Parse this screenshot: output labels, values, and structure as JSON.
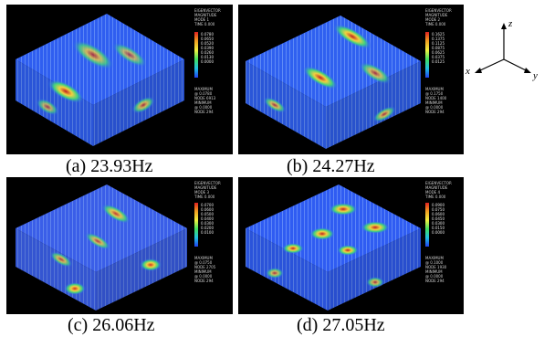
{
  "panels": [
    {
      "caption": "(a) 23.93Hz",
      "legend_top": [
        "EIGENVECTOR",
        "MAGNITUDE",
        "MODE 1",
        "TIME 0.000"
      ],
      "ticks": [
        "0.0780",
        "0.0650",
        "0.0520",
        "0.0390",
        "0.0260",
        "0.0130",
        "0.0000"
      ],
      "legend_bottom": [
        "MAXIMUM",
        "@ 0.0780",
        "NODE 6913",
        "MINIMUM",
        "@ 0.0000",
        "NODE 294"
      ]
    },
    {
      "caption": "(b) 24.27Hz",
      "legend_top": [
        "EIGENVECTOR",
        "MAGNITUDE",
        "MODE 2",
        "TIME 0.000"
      ],
      "ticks": [
        "0.1625",
        "0.1375",
        "0.1125",
        "0.0875",
        "0.0625",
        "0.0375",
        "0.0125"
      ],
      "legend_bottom": [
        "MAXIMUM",
        "@ 0.1750",
        "NODE 1400",
        "MINIMUM",
        "@ 0.0000",
        "NODE 294"
      ]
    },
    {
      "caption": "(c) 26.06Hz",
      "legend_top": [
        "EIGENVECTOR",
        "MAGNITUDE",
        "MODE 3",
        "TIME 0.000"
      ],
      "ticks": [
        "0.0700",
        "0.0600",
        "0.0500",
        "0.0400",
        "0.0300",
        "0.0200",
        "0.0100"
      ],
      "legend_bottom": [
        "MAXIMUM",
        "@ 0.0750",
        "NODE 2705",
        "MINIMUM",
        "@ 0.0000",
        "NODE 294"
      ]
    },
    {
      "caption": "(d) 27.05Hz",
      "legend_top": [
        "EIGENVECTOR",
        "MAGNITUDE",
        "MODE 4",
        "TIME 0.000"
      ],
      "ticks": [
        "0.0900",
        "0.0750",
        "0.0600",
        "0.0450",
        "0.0300",
        "0.0150",
        "0.0000"
      ],
      "legend_bottom": [
        "MAXIMUM",
        "@ 0.1000",
        "NODE 1930",
        "MINIMUM",
        "@ 0.0000",
        "NODE 294"
      ]
    }
  ],
  "axes": {
    "z": "z",
    "x": "x",
    "y": "y"
  },
  "colors": {
    "background": "#000000",
    "mesh_base": "#2a5cff",
    "hot": "#e02020",
    "green": "#30d060"
  }
}
